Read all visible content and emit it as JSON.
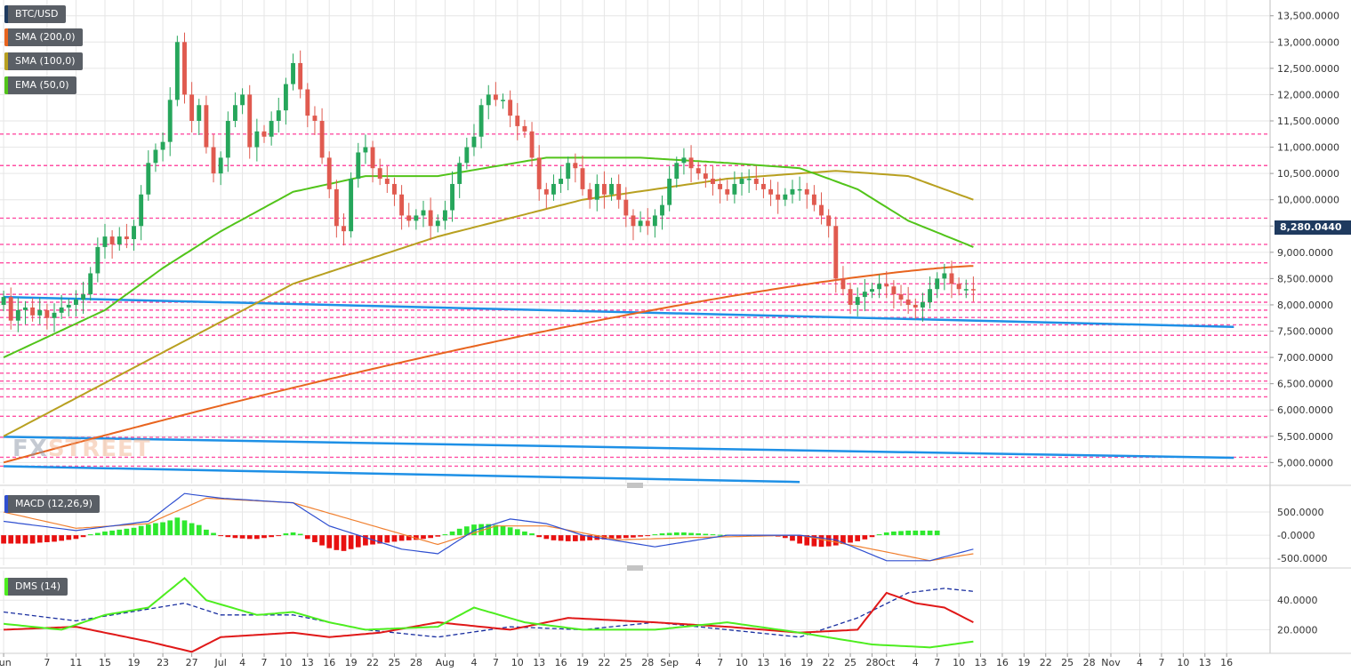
{
  "colors": {
    "bull": "#26a65b",
    "bear": "#e05a4f",
    "sma200": "#e8641e",
    "sma100": "#b8a020",
    "ema50": "#52c41a",
    "trend": "#1e90e6",
    "hline": "#ff4fa3",
    "macd": "#2f4fd0",
    "signal": "#f08030",
    "hist_pos": "#2ee82e",
    "hist_neg": "#e81010",
    "dms_plus": "#4ded1f",
    "dms_minus": "#e01818",
    "adx": "#1a2fa0",
    "grid": "#e6e6e6",
    "axis_text": "#333333",
    "legend_bg": "#5a5f66"
  },
  "legend": [
    {
      "label": "BTC/USD",
      "color": "#1f3a5f"
    },
    {
      "label": "SMA (200,0)",
      "color": "#e8641e"
    },
    {
      "label": "SMA (100,0)",
      "color": "#b8a020"
    },
    {
      "label": "EMA (50,0)",
      "color": "#52c41a"
    }
  ],
  "watermark": {
    "fx": "FX",
    "street": "STREET"
  },
  "price_tag": "8,280.0440",
  "chart_data": [
    {
      "type": "candlestick",
      "title": "BTC/USD",
      "ylim": [
        4600,
        13800
      ],
      "y_ticks": [
        "13,500.0000",
        "13,000.0000",
        "12,500.0000",
        "12,000.0000",
        "11,500.0000",
        "11,000.0000",
        "10,500.0000",
        "10,000.0000",
        "9,500.0000",
        "9,000.0000",
        "8,500.0000",
        "8,000.0000",
        "7,500.0000",
        "7,000.0000",
        "6,500.0000",
        "6,000.0000",
        "5,500.0000",
        "5,000.0000"
      ],
      "y_tick_values": [
        13500,
        13000,
        12500,
        12000,
        11500,
        11000,
        10500,
        10000,
        9500,
        9000,
        8500,
        8000,
        7500,
        7000,
        6500,
        6000,
        5500,
        5000
      ],
      "x_ticks": [
        "Jun",
        "7",
        "11",
        "15",
        "19",
        "23",
        "27",
        "Jul",
        "4",
        "7",
        "10",
        "13",
        "16",
        "19",
        "22",
        "25",
        "28",
        "Aug",
        "4",
        "7",
        "10",
        "13",
        "16",
        "19",
        "22",
        "25",
        "28",
        "Sep",
        "4",
        "7",
        "10",
        "13",
        "16",
        "19",
        "22",
        "25",
        "28",
        "Oct",
        "4",
        "7",
        "10",
        "13",
        "16",
        "19",
        "22",
        "25",
        "28",
        "Nov",
        "4",
        "7",
        "10",
        "13",
        "16"
      ],
      "x_tick_days": [
        0,
        6,
        10,
        14,
        18,
        22,
        26,
        30,
        33,
        36,
        39,
        42,
        45,
        48,
        51,
        54,
        57,
        61,
        65,
        68,
        71,
        74,
        77,
        80,
        83,
        86,
        89,
        92,
        96,
        99,
        102,
        105,
        108,
        111,
        114,
        117,
        120,
        122,
        126,
        129,
        132,
        135,
        138,
        141,
        144,
        147,
        150,
        153,
        157,
        160,
        163,
        166,
        169
      ],
      "start_date": "Jun 1",
      "closes": [
        8150,
        7700,
        7900,
        7950,
        7800,
        7900,
        7750,
        7850,
        7950,
        8000,
        8100,
        8200,
        8600,
        9100,
        9300,
        9150,
        9300,
        9250,
        9500,
        10100,
        10700,
        10950,
        11100,
        11900,
        13000,
        12000,
        11500,
        11800,
        11000,
        10500,
        10800,
        11500,
        11800,
        12000,
        11000,
        11300,
        11200,
        11500,
        11700,
        12200,
        12600,
        12100,
        11600,
        11500,
        10800,
        10200,
        9500,
        9400,
        10400,
        10900,
        11000,
        10600,
        10400,
        10300,
        10100,
        9700,
        9600,
        9700,
        9800,
        9500,
        9600,
        9800,
        10300,
        10700,
        11000,
        11200,
        11800,
        12000,
        11900,
        11900,
        11600,
        11400,
        11300,
        10800,
        10200,
        10100,
        10300,
        10400,
        10700,
        10600,
        10200,
        10000,
        10300,
        10100,
        10300,
        10000,
        9700,
        9500,
        9600,
        9500,
        9700,
        9900,
        10400,
        10700,
        10800,
        10600,
        10500,
        10400,
        10300,
        10200,
        10100,
        10300,
        10400,
        10400,
        10300,
        10200,
        10100,
        10000,
        10100,
        10200,
        10200,
        10100,
        9900,
        9700,
        9500,
        8500,
        8300,
        8000,
        8150,
        8250,
        8300,
        8400,
        8350,
        8200,
        8100,
        8000,
        7950,
        8050,
        8300,
        8500,
        8600,
        8400,
        8300,
        8300,
        8280
      ],
      "sma200": {
        "day0": 5000,
        "day134": 8740
      },
      "sma100_points": [
        [
          0,
          5500
        ],
        [
          40,
          8400
        ],
        [
          60,
          9300
        ],
        [
          80,
          10000
        ],
        [
          100,
          10400
        ],
        [
          115,
          10550
        ],
        [
          125,
          10450
        ],
        [
          134,
          10000
        ]
      ],
      "ema50_points": [
        [
          0,
          7000
        ],
        [
          14,
          7900
        ],
        [
          22,
          8700
        ],
        [
          30,
          9400
        ],
        [
          40,
          10150
        ],
        [
          50,
          10450
        ],
        [
          60,
          10450
        ],
        [
          75,
          10800
        ],
        [
          88,
          10800
        ],
        [
          100,
          10700
        ],
        [
          110,
          10600
        ],
        [
          118,
          10200
        ],
        [
          125,
          9600
        ],
        [
          134,
          9100
        ]
      ],
      "trendlines": [
        {
          "from": [
            0,
            8150
          ],
          "to": [
            170,
            7580
          ]
        },
        {
          "from": [
            0,
            5490
          ],
          "to": [
            170,
            5090
          ]
        },
        {
          "from": [
            0,
            4930
          ],
          "to": [
            110,
            4630
          ]
        }
      ],
      "hlines": [
        11250,
        10650,
        9650,
        9150,
        8800,
        8400,
        8200,
        8050,
        7900,
        7760,
        7620,
        7420,
        7100,
        6880,
        6700,
        6550,
        6400,
        6250,
        5880,
        5480,
        5100,
        4930
      ]
    },
    {
      "type": "line",
      "title": "MACD (12,26,9)",
      "ylim": [
        -650,
        1000
      ],
      "y_ticks": [
        "500.0000",
        "-0.0000",
        "-500.0000"
      ],
      "y_tick_values": [
        500,
        0,
        -500
      ],
      "macd_points": [
        [
          0,
          300
        ],
        [
          10,
          100
        ],
        [
          20,
          300
        ],
        [
          25,
          900
        ],
        [
          30,
          800
        ],
        [
          40,
          700
        ],
        [
          45,
          200
        ],
        [
          55,
          -300
        ],
        [
          60,
          -400
        ],
        [
          65,
          100
        ],
        [
          70,
          350
        ],
        [
          75,
          250
        ],
        [
          80,
          0
        ],
        [
          90,
          -250
        ],
        [
          100,
          0
        ],
        [
          110,
          0
        ],
        [
          115,
          -100
        ],
        [
          122,
          -550
        ],
        [
          128,
          -550
        ],
        [
          134,
          -300
        ]
      ],
      "signal_points": [
        [
          0,
          500
        ],
        [
          10,
          150
        ],
        [
          20,
          250
        ],
        [
          28,
          800
        ],
        [
          40,
          700
        ],
        [
          50,
          250
        ],
        [
          60,
          -200
        ],
        [
          68,
          200
        ],
        [
          75,
          200
        ],
        [
          85,
          -100
        ],
        [
          95,
          -50
        ],
        [
          110,
          0
        ],
        [
          120,
          -300
        ],
        [
          128,
          -550
        ],
        [
          134,
          -400
        ]
      ],
      "histogram": [
        -180,
        -180,
        -180,
        -180,
        -180,
        -160,
        -150,
        -140,
        -120,
        -100,
        -80,
        -40,
        20,
        50,
        80,
        100,
        120,
        140,
        160,
        200,
        230,
        260,
        280,
        320,
        380,
        320,
        260,
        220,
        120,
        50,
        -10,
        -40,
        -60,
        -70,
        -80,
        -80,
        -60,
        -40,
        -10,
        40,
        60,
        30,
        -80,
        -150,
        -220,
        -280,
        -320,
        -340,
        -300,
        -260,
        -220,
        -200,
        -180,
        -160,
        -140,
        -120,
        -110,
        -100,
        -80,
        -60,
        -30,
        20,
        80,
        140,
        190,
        230,
        240,
        240,
        220,
        200,
        170,
        130,
        80,
        40,
        -40,
        -80,
        -110,
        -120,
        -130,
        -130,
        -120,
        -110,
        -100,
        -90,
        -80,
        -70,
        -60,
        -50,
        -30,
        -10,
        20,
        40,
        50,
        60,
        60,
        50,
        40,
        30,
        20,
        10,
        10,
        10,
        10,
        0,
        0,
        -10,
        -20,
        -30,
        -60,
        -120,
        -180,
        -220,
        -240,
        -250,
        -240,
        -220,
        -190,
        -160,
        -130,
        -90,
        -40,
        20,
        60,
        80,
        90,
        100,
        100,
        100,
        100,
        100
      ]
    },
    {
      "type": "line",
      "title": "DMS (14)",
      "ylim": [
        4,
        60
      ],
      "y_ticks": [
        "40.0000",
        "20.0000"
      ],
      "y_tick_values": [
        40,
        20
      ],
      "plus_points": [
        [
          0,
          24
        ],
        [
          8,
          20
        ],
        [
          14,
          30
        ],
        [
          20,
          35
        ],
        [
          25,
          55
        ],
        [
          28,
          40
        ],
        [
          35,
          30
        ],
        [
          40,
          32
        ],
        [
          45,
          25
        ],
        [
          50,
          20
        ],
        [
          60,
          22
        ],
        [
          65,
          35
        ],
        [
          72,
          25
        ],
        [
          80,
          20
        ],
        [
          90,
          20
        ],
        [
          100,
          25
        ],
        [
          110,
          18
        ],
        [
          120,
          10
        ],
        [
          128,
          8
        ],
        [
          134,
          12
        ]
      ],
      "minus_points": [
        [
          0,
          20
        ],
        [
          10,
          22
        ],
        [
          20,
          12
        ],
        [
          26,
          5
        ],
        [
          30,
          15
        ],
        [
          40,
          18
        ],
        [
          45,
          15
        ],
        [
          52,
          18
        ],
        [
          60,
          25
        ],
        [
          70,
          20
        ],
        [
          78,
          28
        ],
        [
          90,
          25
        ],
        [
          100,
          22
        ],
        [
          110,
          18
        ],
        [
          118,
          20
        ],
        [
          122,
          45
        ],
        [
          126,
          38
        ],
        [
          130,
          35
        ],
        [
          134,
          25
        ]
      ],
      "adx_points": [
        [
          0,
          32
        ],
        [
          10,
          26
        ],
        [
          25,
          38
        ],
        [
          30,
          30
        ],
        [
          40,
          30
        ],
        [
          50,
          20
        ],
        [
          60,
          15
        ],
        [
          70,
          22
        ],
        [
          80,
          20
        ],
        [
          90,
          25
        ],
        [
          100,
          20
        ],
        [
          110,
          15
        ],
        [
          118,
          28
        ],
        [
          125,
          45
        ],
        [
          130,
          48
        ],
        [
          134,
          46
        ]
      ]
    }
  ]
}
